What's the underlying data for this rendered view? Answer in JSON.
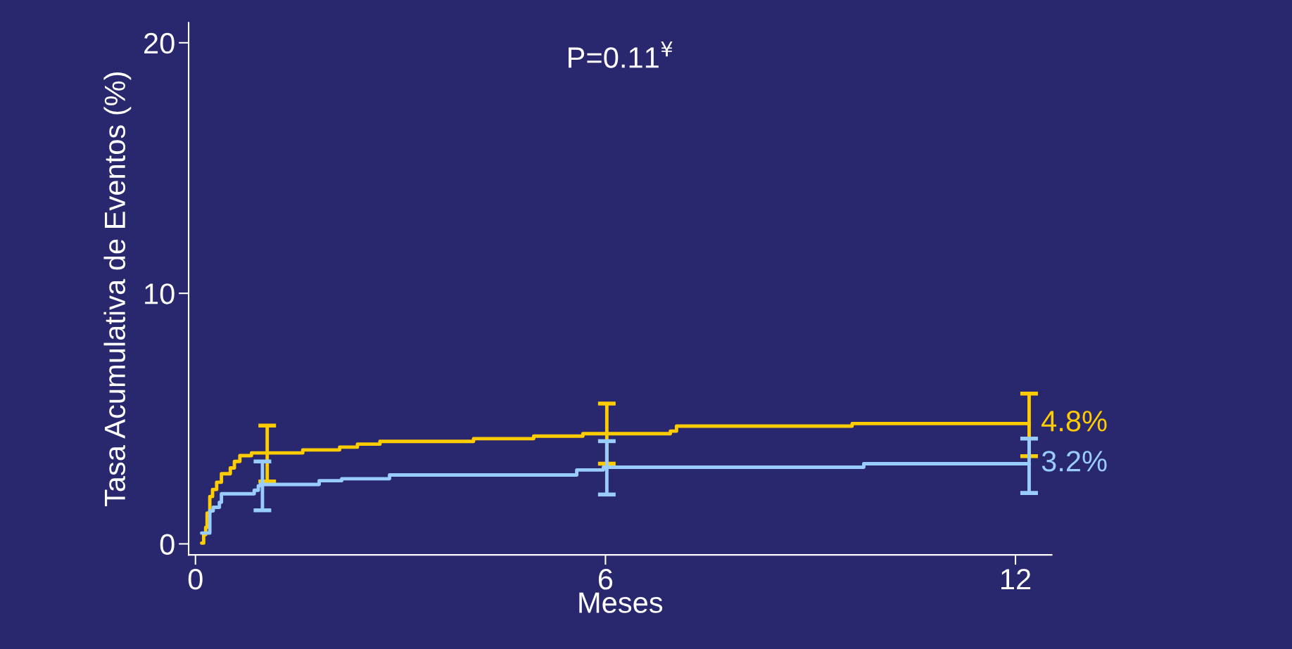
{
  "chart_data": {
    "type": "step",
    "annotations": [
      "P=0.11$^{¥}$"
    ],
    "xlabel": "Meses",
    "ylabel": "Tasa Acumulativa de Eventos (%)",
    "xlim": [
      -0.1,
      12.53
    ],
    "ylim": [
      -0.44,
      20.8
    ],
    "xticks": [
      0,
      6,
      12
    ],
    "yticks": [
      0,
      10,
      20
    ],
    "grid": false,
    "legend": false,
    "marker": "none",
    "line_style": "solid",
    "series": [
      {
        "color": "#ffcc00",
        "x": [
          0.09,
          0.12,
          0.15,
          0.17,
          0.21,
          0.25,
          0.31,
          0.38,
          0.51,
          0.57,
          0.65,
          0.82,
          1.05,
          1.57,
          2.11,
          2.37,
          2.7,
          4.07,
          4.95,
          5.67,
          6.02,
          6.95,
          7.04,
          9.61,
          12.2
        ],
        "values": [
          0.03,
          0.37,
          0.66,
          1.23,
          1.89,
          2.17,
          2.46,
          2.8,
          3.03,
          3.29,
          3.52,
          3.63,
          3.63,
          3.75,
          3.86,
          3.98,
          4.09,
          4.2,
          4.3,
          4.4,
          4.4,
          4.5,
          4.7,
          4.8,
          4.8
        ],
        "errors": [
          null,
          null,
          null,
          null,
          null,
          null,
          null,
          null,
          null,
          null,
          null,
          null,
          [
            2.49,
            4.72
          ],
          null,
          null,
          null,
          null,
          null,
          null,
          null,
          [
            3.2,
            5.6
          ],
          null,
          null,
          null,
          [
            3.5,
            6.0
          ]
        ],
        "value_labels": [
          null,
          null,
          null,
          null,
          null,
          null,
          null,
          null,
          null,
          null,
          null,
          null,
          null,
          null,
          null,
          null,
          null,
          null,
          null,
          null,
          null,
          null,
          null,
          null,
          "4.8%"
        ]
      },
      {
        "color": "#99ccff",
        "x": [
          0.09,
          0.21,
          0.26,
          0.35,
          0.38,
          0.86,
          0.92,
          0.95,
          0.98,
          1.81,
          2.14,
          2.84,
          5.58,
          5.97,
          6.02,
          9.78,
          12.2
        ],
        "values": [
          0.43,
          1.32,
          1.46,
          1.66,
          2.0,
          2.14,
          2.32,
          2.37,
          2.37,
          2.52,
          2.6,
          2.75,
          2.95,
          3.06,
          3.06,
          3.2,
          3.2
        ],
        "errors": [
          null,
          null,
          null,
          null,
          null,
          null,
          null,
          null,
          [
            1.34,
            3.29
          ],
          null,
          null,
          null,
          null,
          null,
          [
            1.97,
            4.1
          ],
          null,
          [
            2.03,
            4.2
          ]
        ],
        "value_labels": [
          null,
          null,
          null,
          null,
          null,
          null,
          null,
          null,
          null,
          null,
          null,
          null,
          null,
          null,
          null,
          null,
          "3.2%"
        ]
      }
    ]
  }
}
